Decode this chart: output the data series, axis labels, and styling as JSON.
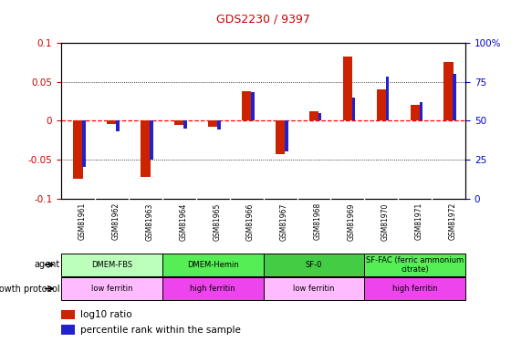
{
  "title": "GDS2230 / 9397",
  "samples": [
    "GSM81961",
    "GSM81962",
    "GSM81963",
    "GSM81964",
    "GSM81965",
    "GSM81966",
    "GSM81967",
    "GSM81968",
    "GSM81969",
    "GSM81970",
    "GSM81971",
    "GSM81972"
  ],
  "log10_ratio": [
    -0.075,
    -0.004,
    -0.072,
    -0.006,
    -0.008,
    0.038,
    -0.043,
    0.012,
    0.082,
    0.04,
    0.02,
    0.075
  ],
  "percentile_rank": [
    20,
    43,
    25,
    45,
    44,
    68,
    30,
    55,
    65,
    78,
    62,
    80
  ],
  "ylim_left": [
    -0.1,
    0.1
  ],
  "ylim_right": [
    0,
    100
  ],
  "agent_groups": [
    {
      "label": "DMEM-FBS",
      "start": 0,
      "end": 3,
      "color": "#bbffbb"
    },
    {
      "label": "DMEM-Hemin",
      "start": 3,
      "end": 6,
      "color": "#55ee55"
    },
    {
      "label": "SF-0",
      "start": 6,
      "end": 9,
      "color": "#44cc44"
    },
    {
      "label": "SF-FAC (ferric ammonium\ncitrate)",
      "start": 9,
      "end": 12,
      "color": "#55ee55"
    }
  ],
  "growth_groups": [
    {
      "label": "low ferritin",
      "start": 0,
      "end": 3,
      "color": "#ffbbff"
    },
    {
      "label": "high ferritin",
      "start": 3,
      "end": 6,
      "color": "#ee44ee"
    },
    {
      "label": "low ferritin",
      "start": 6,
      "end": 9,
      "color": "#ffbbff"
    },
    {
      "label": "high ferritin",
      "start": 9,
      "end": 12,
      "color": "#ee44ee"
    }
  ],
  "bar_color_red": "#cc2200",
  "bar_color_blue": "#2222cc",
  "grid_color": "#000000",
  "zero_line_color": "#ff0000",
  "bg_color": "#ffffff",
  "tick_label_color_left": "#cc0000",
  "tick_label_color_right": "#0000cc"
}
